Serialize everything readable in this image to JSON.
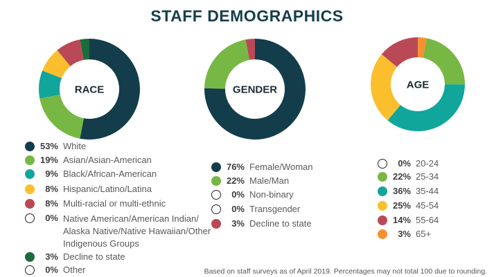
{
  "title": "STAFF DEMOGRAPHICS",
  "footnote": "Based on staff surveys as of April 2019. Percentages may not total 100 due to rounding.",
  "chart_data": [
    {
      "type": "pie",
      "donut": true,
      "center_label": "RACE",
      "slices": [
        {
          "label": "White",
          "pct_label": "53%",
          "value": 53,
          "color": "#133d4b"
        },
        {
          "label": "Asian/Asian-American",
          "pct_label": "19%",
          "value": 19,
          "color": "#76b843"
        },
        {
          "label": "Black/African-American",
          "pct_label": "9%",
          "value": 9,
          "color": "#11a69b"
        },
        {
          "label": "Hispanic/Latino/Latina",
          "pct_label": "8%",
          "value": 8,
          "color": "#fbbf2e"
        },
        {
          "label": "Multi-racial or multi-ethnic",
          "pct_label": "8%",
          "value": 8,
          "color": "#b94a55"
        },
        {
          "label": "Native American/American Indian/ Alaska Native/Native Hawaiian/Other Indigenous Groups",
          "pct_label": "0%",
          "value": 0,
          "color": "empty"
        },
        {
          "label": "Decline to state",
          "pct_label": "3%",
          "value": 3,
          "color": "#1c6b3a"
        },
        {
          "label": "Other",
          "pct_label": "0%",
          "value": 0,
          "color": "empty"
        }
      ]
    },
    {
      "type": "pie",
      "donut": true,
      "center_label": "GENDER",
      "slices": [
        {
          "label": "Female/Woman",
          "pct_label": "76%",
          "value": 76,
          "color": "#133d4b"
        },
        {
          "label": "Male/Man",
          "pct_label": "22%",
          "value": 22,
          "color": "#76b843"
        },
        {
          "label": "Non-binary",
          "pct_label": "0%",
          "value": 0,
          "color": "empty"
        },
        {
          "label": "Transgender",
          "pct_label": "0%",
          "value": 0,
          "color": "empty"
        },
        {
          "label": "Decline to state",
          "pct_label": "3%",
          "value": 3,
          "color": "#b94a55"
        }
      ]
    },
    {
      "type": "pie",
      "donut": true,
      "center_label": "AGE",
      "slices": [
        {
          "label": "20-24",
          "pct_label": "0%",
          "value": 0,
          "color": "empty"
        },
        {
          "label": "25-34",
          "pct_label": "22%",
          "value": 22,
          "color": "#76b843"
        },
        {
          "label": "35-44",
          "pct_label": "36%",
          "value": 36,
          "color": "#11a69b"
        },
        {
          "label": "45-54",
          "pct_label": "25%",
          "value": 25,
          "color": "#fbbf2e"
        },
        {
          "label": "55-64",
          "pct_label": "14%",
          "value": 14,
          "color": "#b94a55"
        },
        {
          "label": "65+",
          "pct_label": "3%",
          "value": 3,
          "color": "#f7912f"
        }
      ]
    }
  ]
}
